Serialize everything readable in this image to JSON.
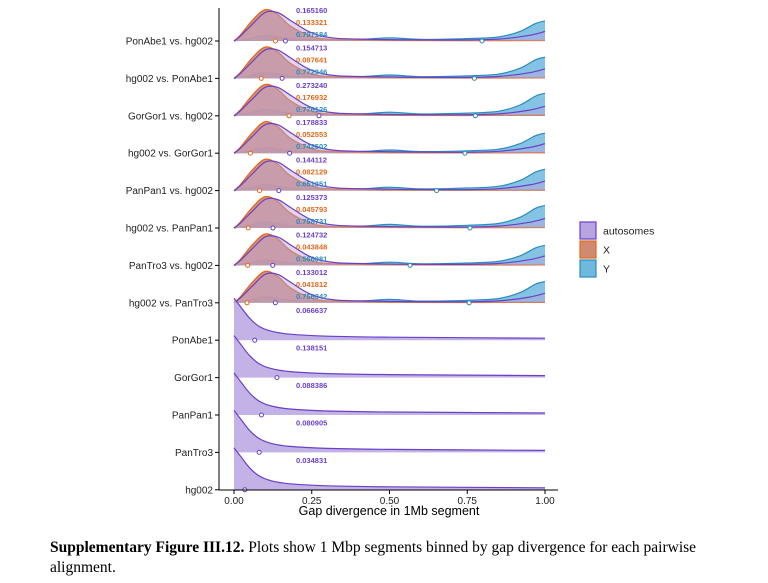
{
  "colors": {
    "autosomes": "#6a40c8",
    "autosomes_fill": "#b8a4e0",
    "X": "#e2691e",
    "X_fill": "#d08a70",
    "Y": "#2b8cbe",
    "Y_fill": "#6fb8de",
    "axis": "#000000"
  },
  "caption": {
    "label": "Supplementary Figure III.12.",
    "text": "Plots show 1 Mbp segments binned by gap divergence for each pairwise alignment."
  },
  "chart_data": {
    "type": "ridgeline",
    "title": "",
    "xlabel": "Gap divergence in 1Mb segment",
    "ylabel": "",
    "xlim": [
      0,
      1
    ],
    "x_ticks": [
      0,
      0.25,
      0.5,
      0.75,
      1
    ],
    "x_tick_labels": [
      "0.00",
      "0.25",
      "0.50",
      "0.75",
      "1.00"
    ],
    "legend": {
      "position": "right",
      "entries": [
        "autosomes",
        "X",
        "Y"
      ]
    },
    "categories": [
      "PonAbe1 vs. hg002",
      "hg002 vs. PonAbe1",
      "GorGor1 vs. hg002",
      "hg002 vs. GorGor1",
      "PanPan1 vs. hg002",
      "hg002 vs. PanPan1",
      "PanTro3 vs. hg002",
      "hg002 vs. PanTro3",
      "PonAbe1",
      "GorGor1",
      "PanPan1",
      "PanTro3",
      "hg002"
    ],
    "rows": [
      {
        "label": "PonAbe1 vs. hg002",
        "means": {
          "autosomes": 0.16516,
          "X": 0.133321,
          "Y": 0.797184
        }
      },
      {
        "label": "hg002 vs. PonAbe1",
        "means": {
          "autosomes": 0.154713,
          "X": 0.087641,
          "Y": 0.772946
        }
      },
      {
        "label": "GorGor1 vs. hg002",
        "means": {
          "autosomes": 0.27324,
          "X": 0.176932,
          "Y": 0.776126
        }
      },
      {
        "label": "hg002 vs. GorGor1",
        "means": {
          "autosomes": 0.178833,
          "X": 0.052553,
          "Y": 0.742502
        }
      },
      {
        "label": "PanPan1 vs. hg002",
        "means": {
          "autosomes": 0.144112,
          "X": 0.082129,
          "Y": 0.651351
        }
      },
      {
        "label": "hg002 vs. PanPan1",
        "means": {
          "autosomes": 0.125373,
          "X": 0.045793,
          "Y": 0.758731
        }
      },
      {
        "label": "PanTro3 vs. hg002",
        "means": {
          "autosomes": 0.124732,
          "X": 0.043848,
          "Y": 0.566081
        }
      },
      {
        "label": "hg002 vs. PanTro3",
        "means": {
          "autosomes": 0.133012,
          "X": 0.041812,
          "Y": 0.756042
        }
      },
      {
        "label": "PonAbe1",
        "means": {
          "autosomes": 0.066637
        }
      },
      {
        "label": "GorGor1",
        "means": {
          "autosomes": 0.138151
        }
      },
      {
        "label": "PanPan1",
        "means": {
          "autosomes": 0.088386
        }
      },
      {
        "label": "PanTro3",
        "means": {
          "autosomes": 0.080905
        }
      },
      {
        "label": "hg002",
        "means": {
          "autosomes": 0.034831
        }
      }
    ]
  }
}
